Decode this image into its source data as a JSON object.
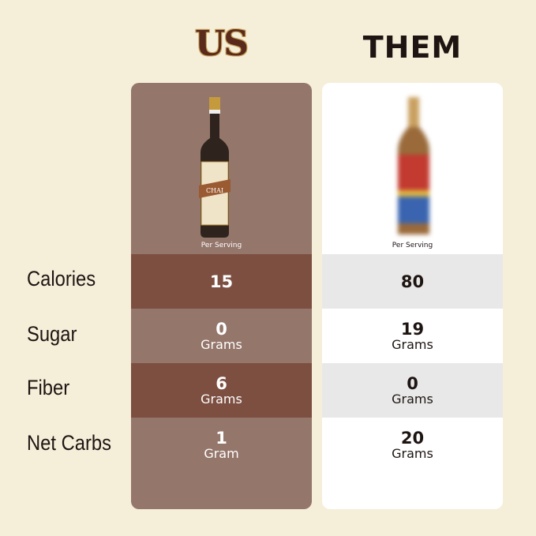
{
  "header": {
    "us_title": "US",
    "them_title": "THEM"
  },
  "colors": {
    "background": "#f5eed9",
    "us_card": "#95766b",
    "us_row_dark": "#7d4f41",
    "them_card": "#ffffff",
    "them_row_dark": "#e8e8e8"
  },
  "labels": [
    "Calories",
    "Sugar",
    "Fiber",
    "Net Carbs"
  ],
  "us": {
    "per_serving": "Per Serving",
    "product_label": "CHAI",
    "rows": [
      {
        "value": "15",
        "unit": ""
      },
      {
        "value": "0",
        "unit": "Grams"
      },
      {
        "value": "6",
        "unit": "Grams"
      },
      {
        "value": "1",
        "unit": "Gram"
      }
    ]
  },
  "them": {
    "per_serving": "Per Serving",
    "rows": [
      {
        "value": "80",
        "unit": ""
      },
      {
        "value": "19",
        "unit": "Grams"
      },
      {
        "value": "0",
        "unit": "Grams"
      },
      {
        "value": "20",
        "unit": "Grams"
      }
    ]
  }
}
